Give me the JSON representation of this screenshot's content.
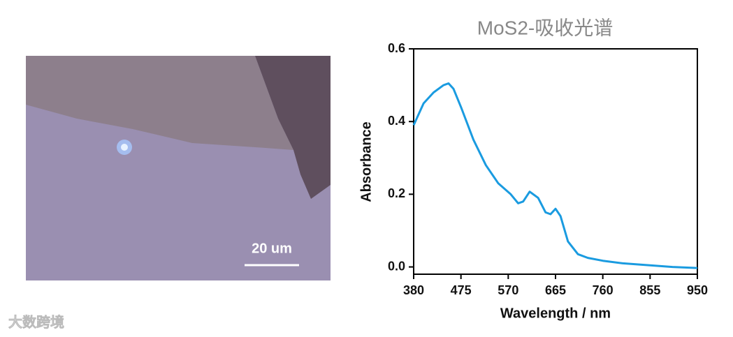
{
  "chart_data": {
    "type": "line",
    "title": "MoS2-吸收光谱",
    "xlabel": "Wavelength / nm",
    "ylabel": "Absorbance",
    "x": [
      380,
      400,
      420,
      440,
      450,
      460,
      475,
      500,
      525,
      550,
      575,
      590,
      600,
      613,
      630,
      645,
      655,
      665,
      675,
      690,
      710,
      730,
      760,
      800,
      850,
      900,
      950
    ],
    "values": [
      0.39,
      0.45,
      0.48,
      0.5,
      0.505,
      0.49,
      0.44,
      0.35,
      0.28,
      0.23,
      0.2,
      0.175,
      0.18,
      0.207,
      0.19,
      0.15,
      0.145,
      0.16,
      0.14,
      0.07,
      0.035,
      0.025,
      0.017,
      0.01,
      0.005,
      0.0,
      -0.003
    ],
    "color": "#1a9be0",
    "xlim": [
      380,
      950
    ],
    "xticks": [
      380,
      475,
      570,
      665,
      760,
      855,
      950
    ],
    "ylim": [
      -0.02,
      0.6
    ],
    "yticks": [
      {
        "value": 0,
        "label": "0.0"
      },
      0.2,
      0.4,
      0.6
    ]
  },
  "image": {
    "scale_bar": "20 um"
  },
  "watermark": "大数跨境"
}
